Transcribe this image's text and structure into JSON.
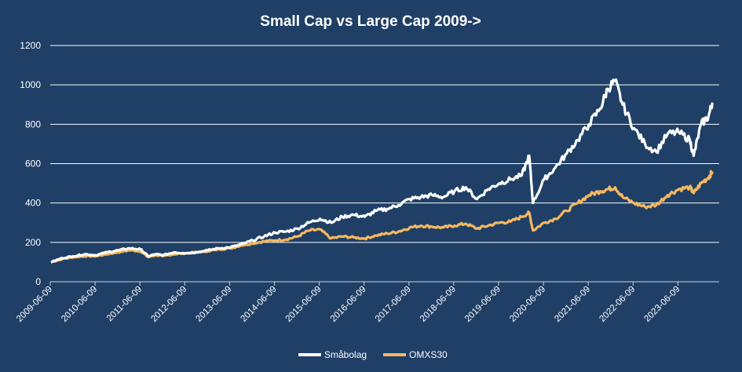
{
  "chart_data": {
    "type": "line",
    "title": "Small Cap vs Large Cap 2009->",
    "xlabel": "",
    "ylabel": "",
    "ylim": [
      0,
      1200
    ],
    "yticks": [
      "0",
      "200",
      "400",
      "600",
      "800",
      "1000",
      "1200"
    ],
    "xticks": [
      "2009-06-09",
      "2010-06-09",
      "2011-06-09",
      "2012-06-09",
      "2013-06-09",
      "2014-06-09",
      "2015-06-09",
      "2016-06-09",
      "2017-06-09",
      "2018-06-09",
      "2019-06-09",
      "2020-06-09",
      "2021-06-09",
      "2022-06-09",
      "2023-06-09"
    ],
    "grid": true,
    "legend_position": "bottom",
    "x": [
      "2009-06",
      "2009-09",
      "2009-12",
      "2010-03",
      "2010-06",
      "2010-09",
      "2010-12",
      "2011-03",
      "2011-06",
      "2011-08",
      "2011-10",
      "2011-12",
      "2012-03",
      "2012-06",
      "2012-09",
      "2012-12",
      "2013-03",
      "2013-06",
      "2013-09",
      "2013-12",
      "2014-03",
      "2014-06",
      "2014-09",
      "2014-12",
      "2015-03",
      "2015-06",
      "2015-09",
      "2015-12",
      "2016-03",
      "2016-06",
      "2016-09",
      "2016-12",
      "2017-03",
      "2017-06",
      "2017-09",
      "2017-12",
      "2018-03",
      "2018-06",
      "2018-09",
      "2018-12",
      "2019-03",
      "2019-06",
      "2019-09",
      "2019-12",
      "2020-02",
      "2020-03",
      "2020-06",
      "2020-09",
      "2020-12",
      "2021-03",
      "2021-06",
      "2021-09",
      "2021-11",
      "2022-01",
      "2022-03",
      "2022-06",
      "2022-09",
      "2022-12",
      "2023-03",
      "2023-06",
      "2023-09",
      "2023-10",
      "2023-12",
      "2024-02",
      "2024-03"
    ],
    "series": [
      {
        "name": "Småbolag",
        "color": "#ffffff",
        "values": [
          100,
          120,
          130,
          140,
          135,
          150,
          160,
          170,
          165,
          130,
          140,
          135,
          150,
          145,
          150,
          160,
          170,
          175,
          190,
          210,
          230,
          250,
          255,
          270,
          300,
          320,
          300,
          330,
          340,
          330,
          360,
          370,
          390,
          420,
          430,
          440,
          430,
          460,
          480,
          420,
          470,
          500,
          520,
          540,
          640,
          400,
          520,
          580,
          650,
          720,
          800,
          880,
          980,
          1020,
          900,
          780,
          700,
          660,
          750,
          760,
          720,
          640,
          800,
          840,
          910
        ]
      },
      {
        "name": "OMXS30",
        "color": "#f5b85f",
        "values": [
          100,
          115,
          125,
          130,
          130,
          140,
          150,
          160,
          155,
          125,
          135,
          130,
          140,
          145,
          150,
          155,
          165,
          170,
          185,
          195,
          205,
          210,
          215,
          230,
          260,
          265,
          220,
          230,
          225,
          220,
          235,
          245,
          255,
          275,
          285,
          280,
          275,
          285,
          295,
          270,
          285,
          300,
          305,
          330,
          350,
          260,
          300,
          320,
          360,
          400,
          440,
          460,
          470,
          480,
          430,
          400,
          380,
          390,
          440,
          470,
          480,
          450,
          500,
          530,
          560
        ]
      }
    ]
  }
}
